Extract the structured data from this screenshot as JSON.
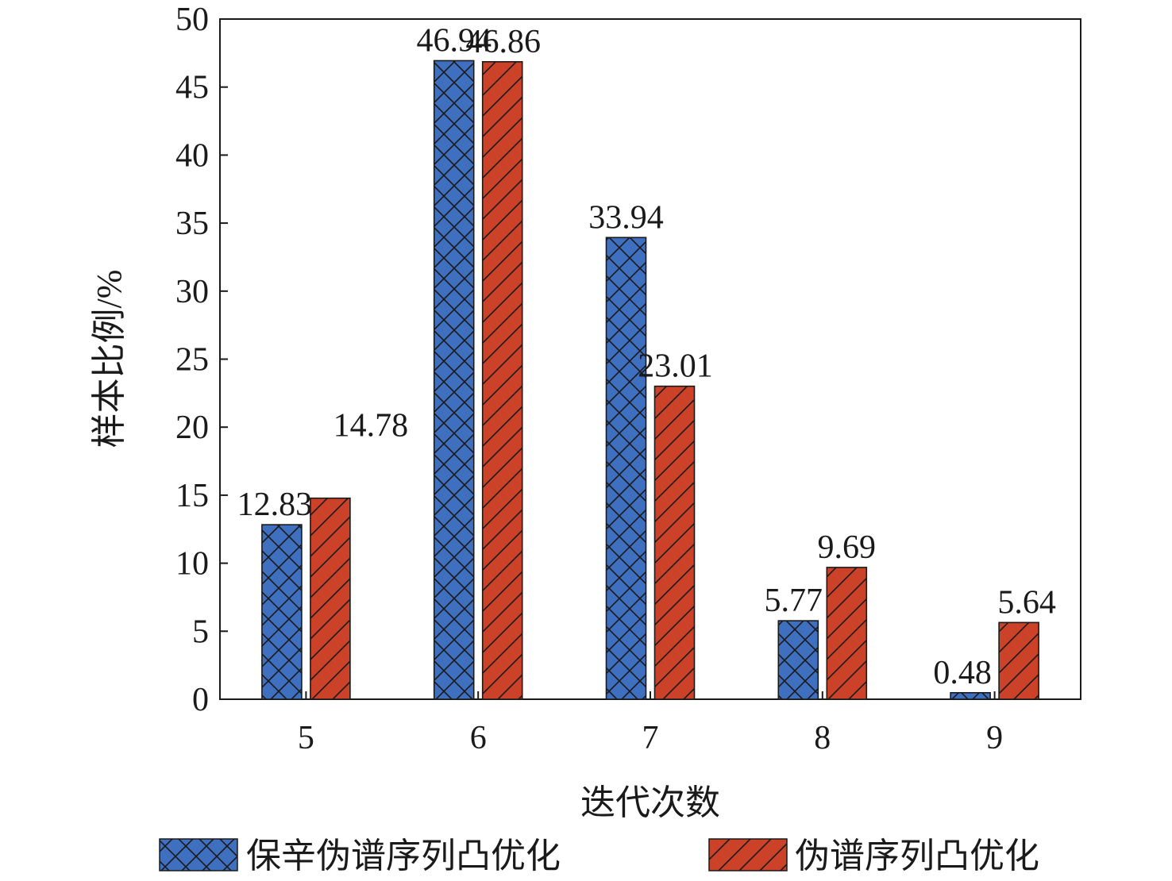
{
  "chart_data": {
    "type": "bar",
    "categories": [
      "5",
      "6",
      "7",
      "8",
      "9"
    ],
    "series": [
      {
        "name": "保辛伪谱序列凸优化",
        "values": [
          12.83,
          46.94,
          33.94,
          5.77,
          0.48
        ],
        "color": "#3f6fbf",
        "pattern": "crosshatch"
      },
      {
        "name": "伪谱序列凸优化",
        "values": [
          14.78,
          46.86,
          23.01,
          9.69,
          5.64
        ],
        "color": "#cc4229",
        "pattern": "diagonal"
      }
    ],
    "data_labels": [
      [
        "12.83",
        "46.94",
        "33.94",
        "5.77",
        "0.48"
      ],
      [
        "14.78",
        "46.86",
        "23.01",
        "9.69",
        "5.64"
      ]
    ],
    "xlabel": "迭代次数",
    "ylabel": "样本比例/%",
    "ylim": [
      0,
      50
    ],
    "yticks": [
      "0",
      "5",
      "10",
      "15",
      "20",
      "25",
      "30",
      "35",
      "40",
      "45",
      "50"
    ],
    "grid": false,
    "legend_position": "bottom"
  }
}
